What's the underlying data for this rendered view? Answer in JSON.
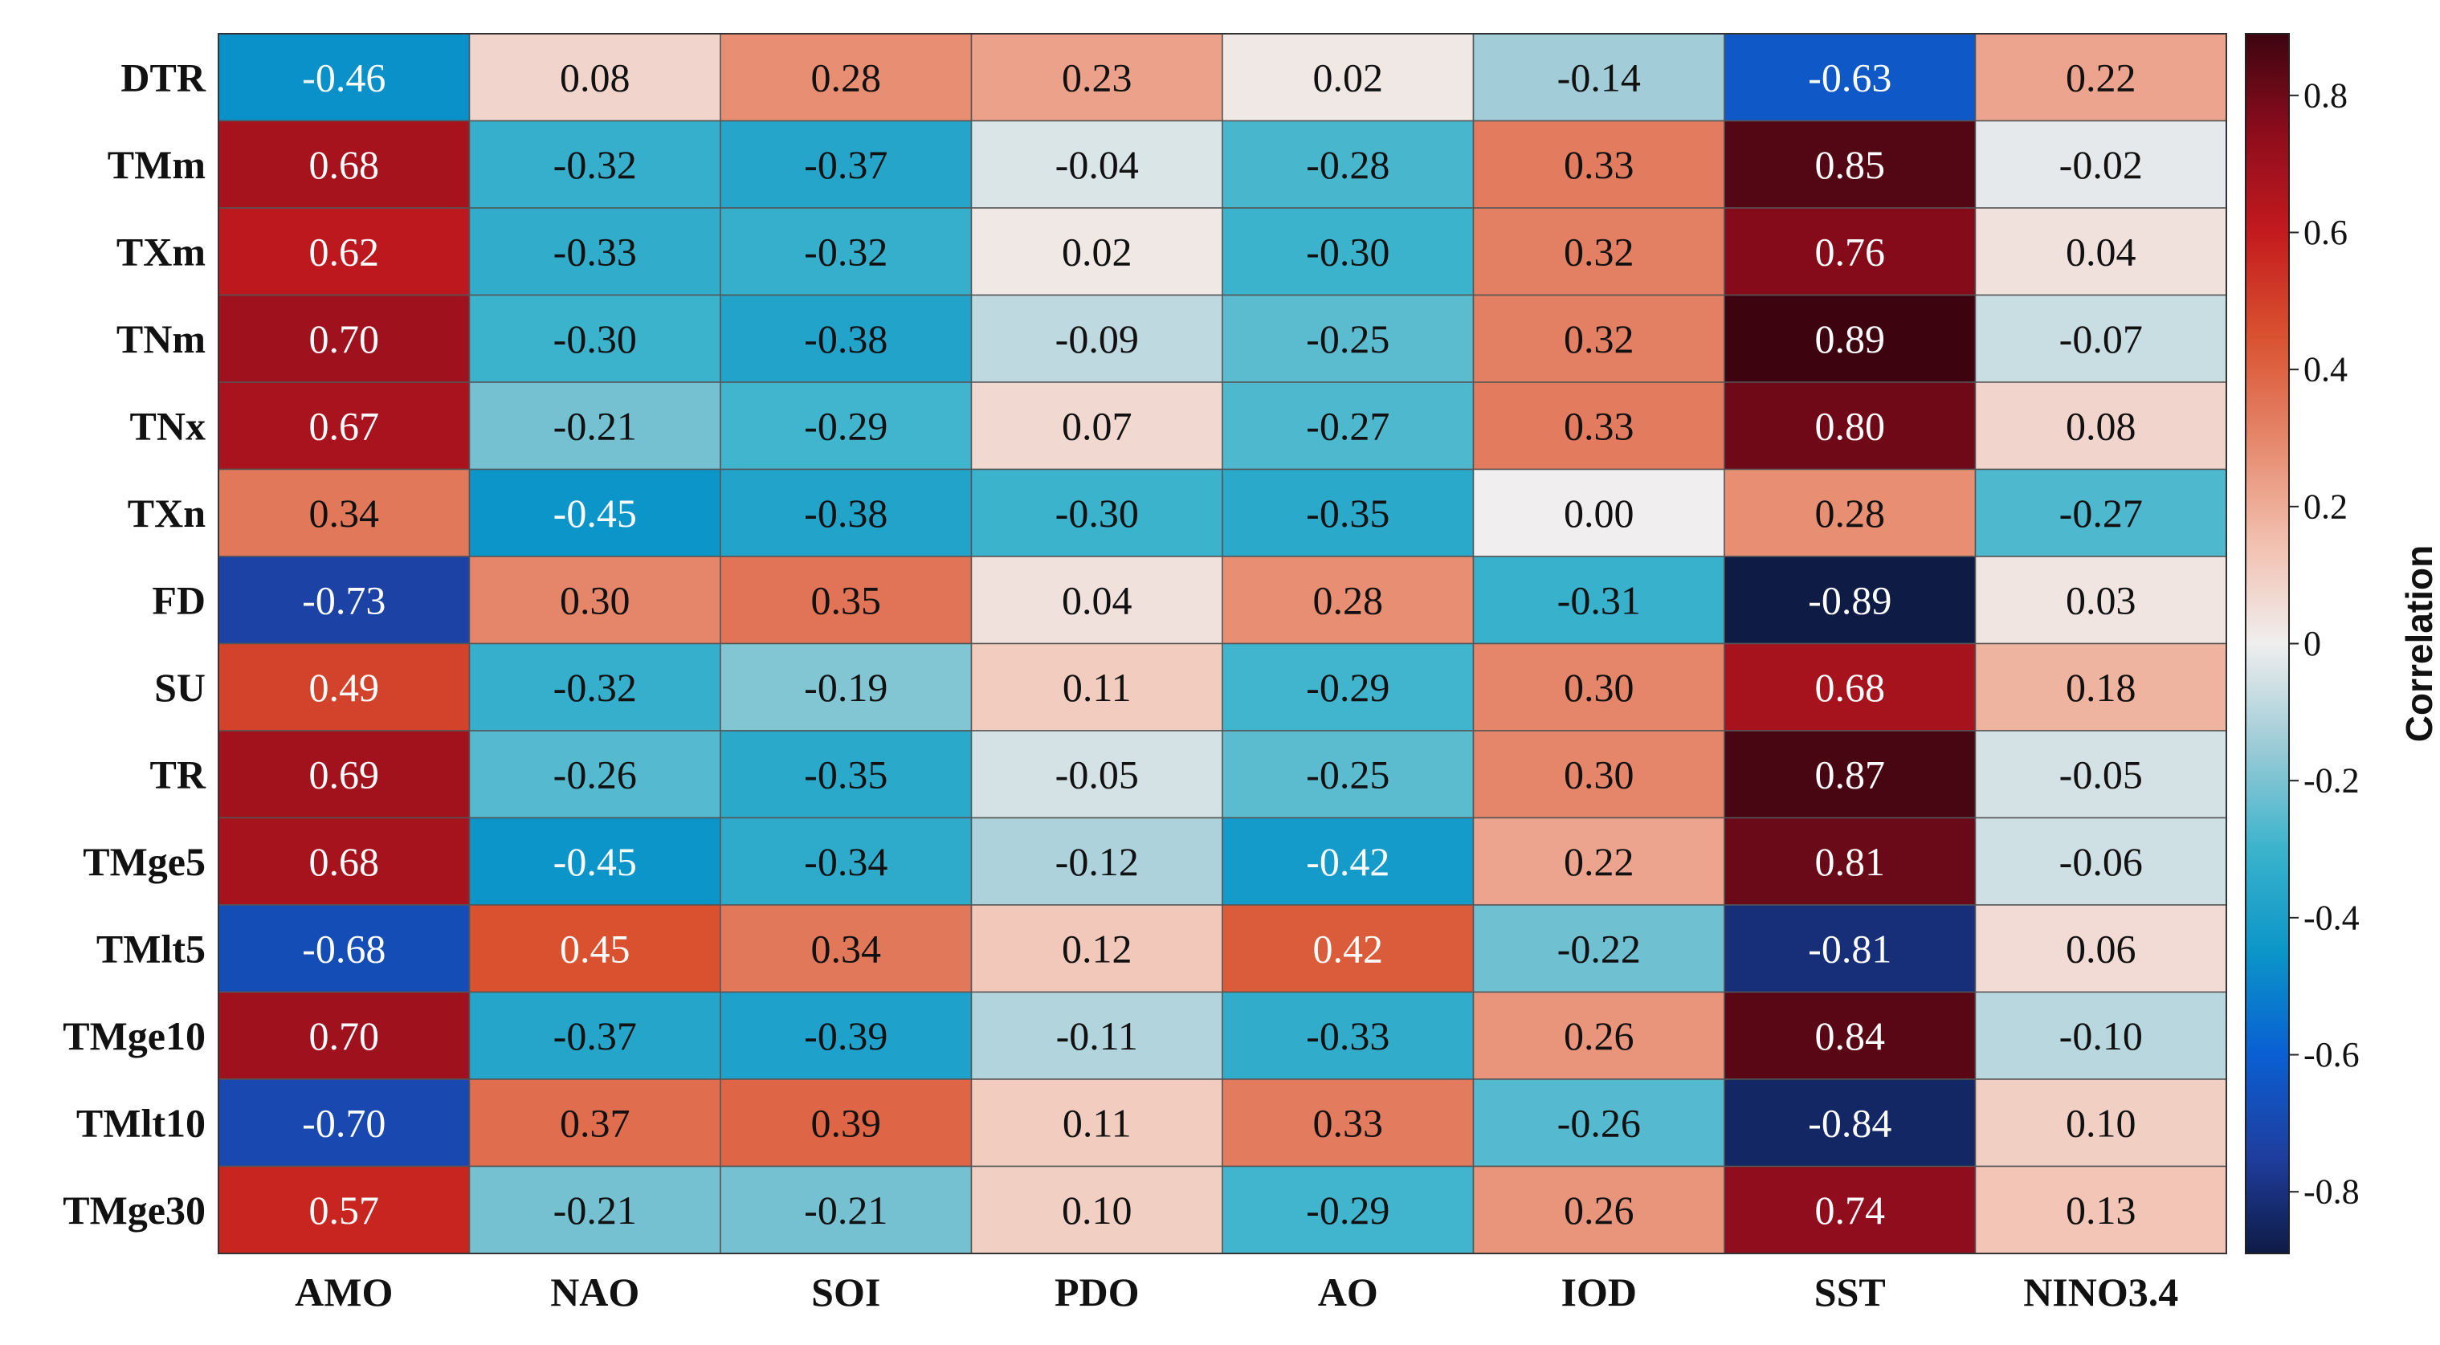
{
  "chart_data": {
    "type": "heatmap",
    "title": "",
    "xlabel": "",
    "ylabel": "",
    "rows": [
      "DTR",
      "TMm",
      "TXm",
      "TNm",
      "TNx",
      "TXn",
      "FD",
      "SU",
      "TR",
      "TMge5",
      "TMlt5",
      "TMge10",
      "TMlt10",
      "TMge30"
    ],
    "columns": [
      "AMO",
      "NAO",
      "SOI",
      "PDO",
      "AO",
      "IOD",
      "SST",
      "NINO3.4"
    ],
    "values": [
      [
        -0.46,
        0.08,
        0.28,
        0.23,
        0.02,
        -0.14,
        -0.63,
        0.22
      ],
      [
        0.68,
        -0.32,
        -0.37,
        -0.04,
        -0.28,
        0.33,
        0.85,
        -0.02
      ],
      [
        0.62,
        -0.33,
        -0.32,
        0.02,
        -0.3,
        0.32,
        0.76,
        0.04
      ],
      [
        0.7,
        -0.3,
        -0.38,
        -0.09,
        -0.25,
        0.32,
        0.89,
        -0.07
      ],
      [
        0.67,
        -0.21,
        -0.29,
        0.07,
        -0.27,
        0.33,
        0.8,
        0.08
      ],
      [
        0.34,
        -0.45,
        -0.38,
        -0.3,
        -0.35,
        0.0,
        0.28,
        -0.27
      ],
      [
        -0.73,
        0.3,
        0.35,
        0.04,
        0.28,
        -0.31,
        -0.89,
        0.03
      ],
      [
        0.49,
        -0.32,
        -0.19,
        0.11,
        -0.29,
        0.3,
        0.68,
        0.18
      ],
      [
        0.69,
        -0.26,
        -0.35,
        -0.05,
        -0.25,
        0.3,
        0.87,
        -0.05
      ],
      [
        0.68,
        -0.45,
        -0.34,
        -0.12,
        -0.42,
        0.22,
        0.81,
        -0.06
      ],
      [
        -0.68,
        0.45,
        0.34,
        0.12,
        0.42,
        -0.22,
        -0.81,
        0.06
      ],
      [
        0.7,
        -0.37,
        -0.39,
        -0.11,
        -0.33,
        0.26,
        0.84,
        -0.1
      ],
      [
        -0.7,
        0.37,
        0.39,
        0.11,
        0.33,
        -0.26,
        -0.84,
        0.1
      ],
      [
        0.57,
        -0.21,
        -0.21,
        0.1,
        -0.29,
        0.26,
        0.74,
        0.13
      ]
    ],
    "value_labels": [
      [
        "-0.46",
        "0.08",
        "0.28",
        "0.23",
        "0.02",
        "-0.14",
        "-0.63",
        "0.22"
      ],
      [
        "0.68",
        "-0.32",
        "-0.37",
        "-0.04",
        "-0.28",
        "0.33",
        "0.85",
        "-0.02"
      ],
      [
        "0.62",
        "-0.33",
        "-0.32",
        "0.02",
        "-0.30",
        "0.32",
        "0.76",
        "0.04"
      ],
      [
        "0.70",
        "-0.30",
        "-0.38",
        "-0.09",
        "-0.25",
        "0.32",
        "0.89",
        "-0.07"
      ],
      [
        "0.67",
        "-0.21",
        "-0.29",
        "0.07",
        "-0.27",
        "0.33",
        "0.80",
        "0.08"
      ],
      [
        "0.34",
        "-0.45",
        "-0.38",
        "-0.30",
        "-0.35",
        "0.00",
        "0.28",
        "-0.27"
      ],
      [
        "-0.73",
        "0.30",
        "0.35",
        "0.04",
        "0.28",
        "-0.31",
        "-0.89",
        "0.03"
      ],
      [
        "0.49",
        "-0.32",
        "-0.19",
        "0.11",
        "-0.29",
        "0.30",
        "0.68",
        "0.18"
      ],
      [
        "0.69",
        "-0.26",
        "-0.35",
        "-0.05",
        "-0.25",
        "0.30",
        "0.87",
        "-0.05"
      ],
      [
        "0.68",
        "-0.45",
        "-0.34",
        "-0.12",
        "-0.42",
        "0.22",
        "0.81",
        "-0.06"
      ],
      [
        "-0.68",
        "0.45",
        "0.34",
        "0.12",
        "0.42",
        "-0.22",
        "-0.81",
        "0.06"
      ],
      [
        "0.70",
        "-0.37",
        "-0.39",
        "-0.11",
        "-0.33",
        "0.26",
        "0.84",
        "-0.10"
      ],
      [
        "-0.70",
        "0.37",
        "0.39",
        "0.11",
        "0.33",
        "-0.26",
        "-0.84",
        "0.10"
      ],
      [
        "0.57",
        "-0.21",
        "-0.21",
        "0.10",
        "-0.29",
        "0.26",
        "0.74",
        "0.13"
      ]
    ],
    "colorbar": {
      "label": "Correlation",
      "range": [
        -0.89,
        0.89
      ],
      "ticks": [
        0.8,
        0.6,
        0.4,
        0.2,
        0,
        -0.2,
        -0.4,
        -0.6,
        -0.8
      ],
      "tick_labels": [
        "0.8",
        "0.6",
        "0.4",
        "0.2",
        "0",
        "-0.2",
        "-0.4",
        "-0.6",
        "-0.8"
      ],
      "colormap_stops": [
        {
          "value": -0.89,
          "color": "#0d1b45"
        },
        {
          "value": -0.75,
          "color": "#1f3d9e"
        },
        {
          "value": -0.6,
          "color": "#0a5fd3"
        },
        {
          "value": -0.45,
          "color": "#0b95c8"
        },
        {
          "value": -0.3,
          "color": "#3bb3cc"
        },
        {
          "value": -0.15,
          "color": "#9ccbd6"
        },
        {
          "value": 0.0,
          "color": "#f0eeee"
        },
        {
          "value": 0.15,
          "color": "#f2bfae"
        },
        {
          "value": 0.3,
          "color": "#e5866a"
        },
        {
          "value": 0.45,
          "color": "#d9512f"
        },
        {
          "value": 0.6,
          "color": "#c41a1e"
        },
        {
          "value": 0.75,
          "color": "#8b0c1c"
        },
        {
          "value": 0.89,
          "color": "#3d0410"
        }
      ]
    }
  }
}
